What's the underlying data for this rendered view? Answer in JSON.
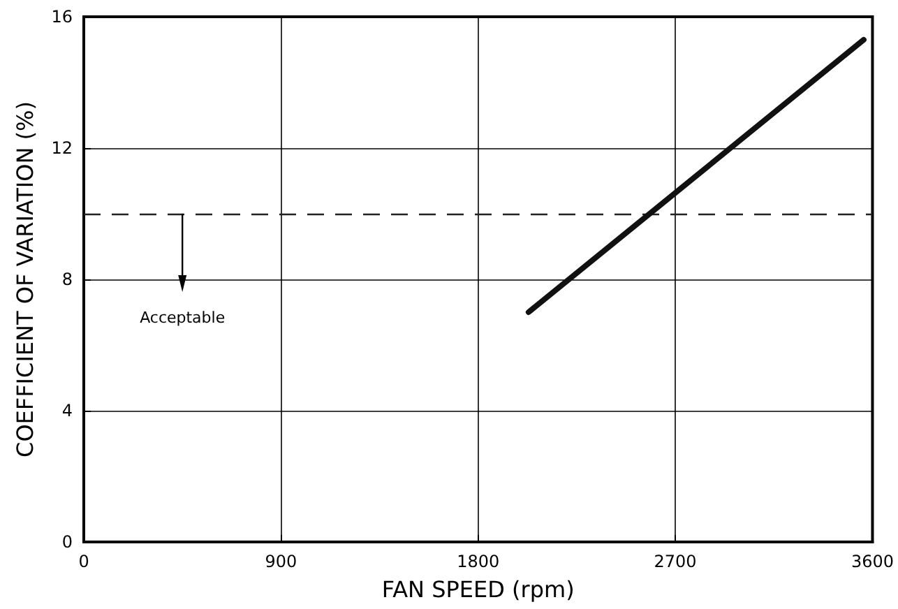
{
  "chart_data": {
    "type": "line",
    "xlabel": "FAN SPEED (rpm)",
    "ylabel": "COEFFICIENT OF VARIATION (%)",
    "x": [
      2030,
      3560
    ],
    "series": [
      {
        "color": "#111111",
        "values": [
          7,
          15.3
        ]
      }
    ],
    "xlim": [
      0,
      3600
    ],
    "xticks": [
      0,
      900,
      1800,
      2700,
      3600
    ],
    "ylim": [
      0,
      16
    ],
    "yticks": [
      0,
      4,
      8,
      12,
      16
    ],
    "grid": true,
    "marker": "none",
    "line_style": "solid",
    "ref_lines": [
      {
        "axis": "y",
        "value": 10,
        "label": null,
        "color": "#222222",
        "line_style": "dashed"
      }
    ],
    "annotations": [
      "Acceptable"
    ]
  }
}
